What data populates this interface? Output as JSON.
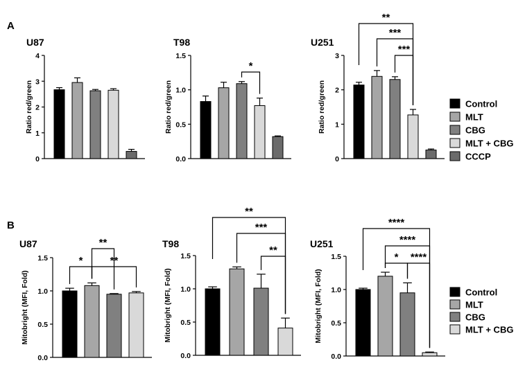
{
  "panels": [
    {
      "letter": "A"
    },
    {
      "letter": "B"
    }
  ],
  "legends": [
    {
      "entries": [
        {
          "label": "Control",
          "color": "#000000"
        },
        {
          "label": "MLT",
          "color": "#a6a6a6"
        },
        {
          "label": "CBG",
          "color": "#808080"
        },
        {
          "label": "MLT + CBG",
          "color": "#d9d9d9"
        },
        {
          "label": "CCCP",
          "color": "#6b6b6b"
        }
      ]
    },
    {
      "entries": [
        {
          "label": "Control",
          "color": "#000000"
        },
        {
          "label": "MLT",
          "color": "#a6a6a6"
        },
        {
          "label": "CBG",
          "color": "#808080"
        },
        {
          "label": "MLT + CBG",
          "color": "#d9d9d9"
        }
      ]
    }
  ],
  "chart_data": [
    {
      "type": "bar",
      "title": "U87",
      "ylabel": "Ratio red/green",
      "categories": [
        "Control",
        "MLT",
        "CBG",
        "MLT + CBG",
        "CCCP"
      ],
      "values": [
        2.67,
        2.95,
        2.63,
        2.65,
        0.28
      ],
      "errors": [
        0.08,
        0.18,
        0.05,
        0.06,
        0.08
      ],
      "ylim": [
        0,
        4
      ],
      "yticks": [
        "0",
        "1",
        "2",
        "3",
        "4"
      ],
      "colors": [
        "#000000",
        "#a6a6a6",
        "#808080",
        "#d9d9d9",
        "#6b6b6b"
      ],
      "significance": []
    },
    {
      "type": "bar",
      "title": "T98",
      "ylabel": "Ratio red/green",
      "categories": [
        "Control",
        "MLT",
        "CBG",
        "MLT + CBG",
        "CCCP"
      ],
      "values": [
        0.83,
        1.03,
        1.09,
        0.77,
        0.32
      ],
      "errors": [
        0.08,
        0.08,
        0.03,
        0.11,
        0.01
      ],
      "ylim": [
        0,
        1.5
      ],
      "yticks": [
        "0.0",
        "0.5",
        "1.0",
        "1.5"
      ],
      "colors": [
        "#000000",
        "#a6a6a6",
        "#808080",
        "#d9d9d9",
        "#6b6b6b"
      ],
      "significance": [
        {
          "from": 2,
          "to": 3,
          "label": "*"
        }
      ]
    },
    {
      "type": "bar",
      "title": "U251",
      "ylabel": "Ratio red/green",
      "categories": [
        "Control",
        "MLT",
        "CBG",
        "MLT + CBG",
        "CCCP"
      ],
      "values": [
        2.14,
        2.39,
        2.3,
        1.27,
        0.25
      ],
      "errors": [
        0.08,
        0.17,
        0.08,
        0.16,
        0.03
      ],
      "ylim": [
        0,
        3
      ],
      "yticks": [
        "0",
        "1",
        "2",
        "3"
      ],
      "colors": [
        "#000000",
        "#a6a6a6",
        "#808080",
        "#d9d9d9",
        "#6b6b6b"
      ],
      "significance": [
        {
          "from": 0,
          "to": 3,
          "label": "**"
        },
        {
          "from": 1,
          "to": 3,
          "label": "***"
        },
        {
          "from": 2,
          "to": 3,
          "label": "***"
        }
      ]
    },
    {
      "type": "bar",
      "title": "U87",
      "ylabel": "Mitobright (MFI, Fold)",
      "categories": [
        "Control",
        "MLT",
        "CBG",
        "MLT + CBG"
      ],
      "values": [
        1.0,
        1.08,
        0.95,
        0.97
      ],
      "errors": [
        0.04,
        0.04,
        0.01,
        0.02
      ],
      "ylim": [
        0,
        1.5
      ],
      "yticks": [
        "0.0",
        "0.5",
        "1.0",
        "1.5"
      ],
      "colors": [
        "#000000",
        "#a6a6a6",
        "#808080",
        "#d9d9d9"
      ],
      "significance": [
        {
          "from": 0,
          "to": 1,
          "label": "*"
        },
        {
          "from": 1,
          "to": 2,
          "label": "**"
        },
        {
          "from": 1,
          "to": 3,
          "label": "**"
        }
      ]
    },
    {
      "type": "bar",
      "title": "T98",
      "ylabel": "Mitobright (MFI, Fold)",
      "categories": [
        "Control",
        "MLT",
        "CBG",
        "MLT + CBG"
      ],
      "values": [
        1.0,
        1.3,
        1.01,
        0.41
      ],
      "errors": [
        0.03,
        0.03,
        0.21,
        0.15
      ],
      "ylim": [
        0,
        1.5
      ],
      "yticks": [
        "0.0",
        "0.5",
        "1.0",
        "1.5"
      ],
      "colors": [
        "#000000",
        "#a6a6a6",
        "#808080",
        "#d9d9d9"
      ],
      "significance": [
        {
          "from": 0,
          "to": 3,
          "label": "**"
        },
        {
          "from": 1,
          "to": 3,
          "label": "***"
        },
        {
          "from": 2,
          "to": 3,
          "label": "**"
        }
      ]
    },
    {
      "type": "bar",
      "title": "U251",
      "ylabel": "Mitobright (MFI, Fold)",
      "categories": [
        "Control",
        "MLT",
        "CBG",
        "MLT + CBG"
      ],
      "values": [
        1.0,
        1.2,
        0.95,
        0.05
      ],
      "errors": [
        0.02,
        0.06,
        0.15,
        0.01
      ],
      "ylim": [
        0,
        1.5
      ],
      "yticks": [
        "0.0",
        "0.5",
        "1.0",
        "1.5"
      ],
      "colors": [
        "#000000",
        "#a6a6a6",
        "#808080",
        "#d9d9d9"
      ],
      "significance": [
        {
          "from": 0,
          "to": 3,
          "label": "****"
        },
        {
          "from": 1,
          "to": 3,
          "label": "****"
        },
        {
          "from": 1,
          "to": 2,
          "label": "*"
        },
        {
          "from": 2,
          "to": 3,
          "label": "****"
        }
      ]
    }
  ]
}
